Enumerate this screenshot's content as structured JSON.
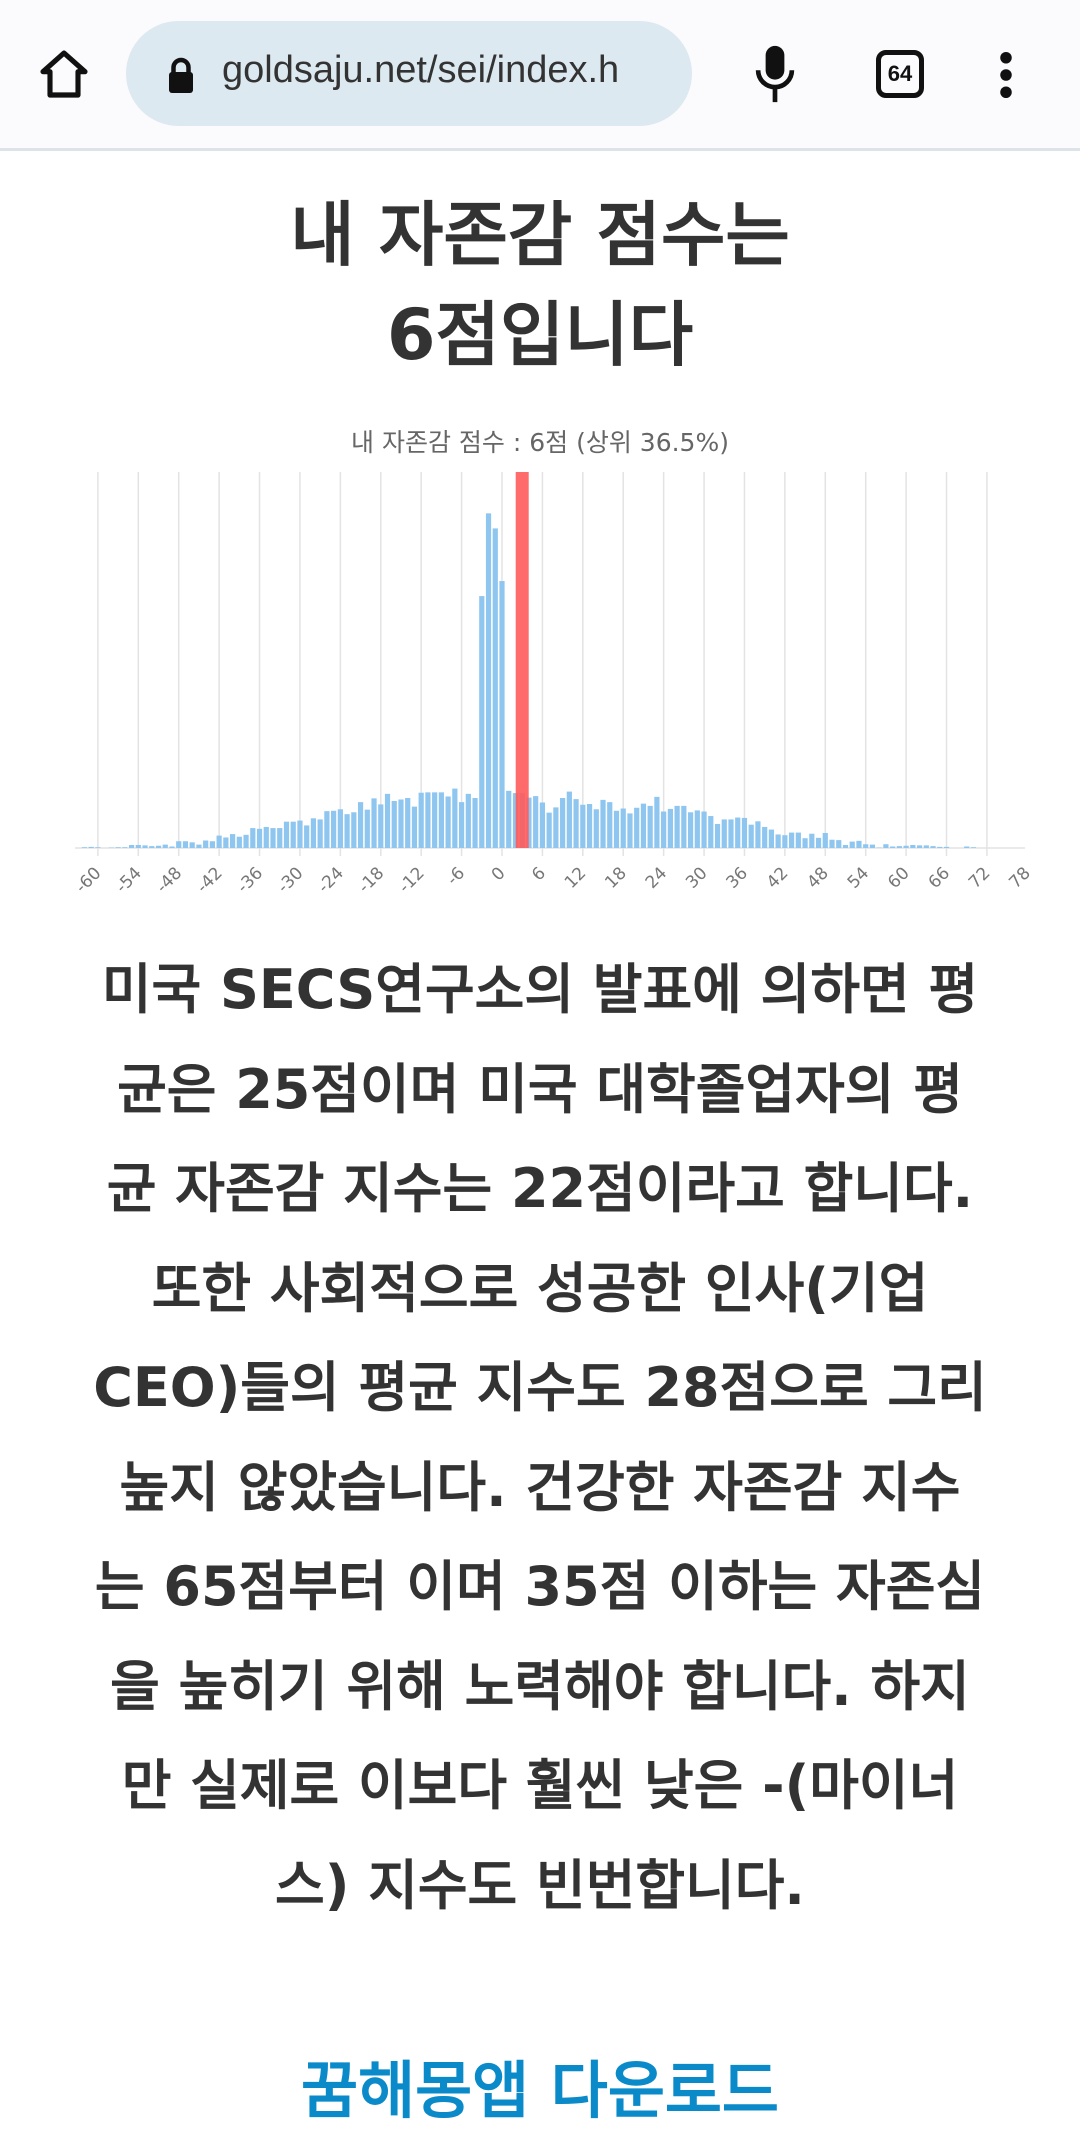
{
  "browser": {
    "url": "goldsaju.net/sei/index.h",
    "tab_count": "64",
    "icons": [
      "home-icon",
      "lock-icon",
      "microphone-icon",
      "tabs-icon",
      "more-vert-icon"
    ]
  },
  "page": {
    "title_lines": [
      "내 자존감 점수는",
      "6점입니다"
    ],
    "paragraph_lines": [
      "미국 SECS연구소의 발표에 의하면 평",
      "균은 25점이며 미국 대학졸업자의 평",
      "균 자존감 지수는 22점이라고 합니다.",
      "또한 사회적으로 성공한 인사(기업",
      "CEO)들의 평균 지수도 28점으로 그리",
      "높지 않았습니다. 건강한 자존감 지수",
      "는 65점부터 이며 35점 이하는 자존심",
      "을 높히기 위해 노력해야 합니다. 하지",
      "만 실제로 이보다 훨씬 낮은 -(마이너",
      "스) 지수도 빈번합니다."
    ],
    "download_link": "꿈해몽앱 다운로드",
    "link_color": "#0a8ac9"
  },
  "chart_data": {
    "type": "bar",
    "title": "내 자존감 점수 :  6점 (상위 36.5%)",
    "xlabel": "",
    "ylabel": "",
    "xlim": [
      -64,
      78
    ],
    "ylim": [
      0,
      100
    ],
    "grid": true,
    "x_ticks": [
      "-60",
      "-54",
      "-48",
      "-42",
      "-36",
      "-30",
      "-24",
      "-18",
      "-12",
      "-6",
      "0",
      "6",
      "12",
      "18",
      "24",
      "30",
      "36",
      "42",
      "48",
      "54",
      "60",
      "66",
      "72",
      "78"
    ],
    "bar_color": "#8ec6f0",
    "highlight_color": "#ff5a5a",
    "highlight_x": 3,
    "x": [
      -62,
      -61,
      -60,
      -59,
      -58,
      -57,
      -56,
      -55,
      -54,
      -53,
      -52,
      -51,
      -50,
      -49,
      -48,
      -47,
      -46,
      -45,
      -44,
      -43,
      -42,
      -41,
      -40,
      -39,
      -38,
      -37,
      -36,
      -35,
      -34,
      -33,
      -32,
      -31,
      -30,
      -29,
      -28,
      -27,
      -26,
      -25,
      -24,
      -23,
      -22,
      -21,
      -20,
      -19,
      -18,
      -17,
      -16,
      -15,
      -14,
      -13,
      -12,
      -11,
      -10,
      -9,
      -8,
      -7,
      -6,
      -5,
      -4,
      -3,
      -2,
      -1,
      0,
      1,
      2,
      3,
      4,
      5,
      6,
      7,
      8,
      9,
      10,
      11,
      12,
      13,
      14,
      15,
      16,
      17,
      18,
      19,
      20,
      21,
      22,
      23,
      24,
      25,
      26,
      27,
      28,
      29,
      30,
      31,
      32,
      33,
      34,
      35,
      36,
      37,
      38,
      39,
      40,
      41,
      42,
      43,
      44,
      45,
      46,
      47,
      48,
      49,
      50,
      51,
      52,
      53,
      54,
      55,
      56,
      57,
      58,
      59,
      60,
      61,
      62,
      63,
      64,
      65,
      66,
      67,
      68,
      69,
      70
    ],
    "values": [
      0.2,
      0.3,
      0.2,
      0,
      0.1,
      0.2,
      0.2,
      0.8,
      0.8,
      0.7,
      0.5,
      0.6,
      0.9,
      0.4,
      1.8,
      1.8,
      1.5,
      0.9,
      2.0,
      1.8,
      3.3,
      2.8,
      3.7,
      3.0,
      3.5,
      5.3,
      5.1,
      5.6,
      5.3,
      5.3,
      7.0,
      7.0,
      7.3,
      6.0,
      7.9,
      7.6,
      9.8,
      9.9,
      10.3,
      9.0,
      9.5,
      12.2,
      10.2,
      13.2,
      11.6,
      14.4,
      12.5,
      12.9,
      13.3,
      11.0,
      14.7,
      14.8,
      14.8,
      14.8,
      13.7,
      15.8,
      12.2,
      14.4,
      13.3,
      67,
      89,
      85,
      71,
      15.2,
      14.6,
      14.6,
      13.4,
      13.8,
      12.1,
      9.4,
      10.8,
      13.3,
      15.0,
      13.0,
      11.5,
      11.7,
      10.3,
      12.8,
      12.2,
      9.9,
      10.5,
      9.2,
      10.7,
      11.8,
      11.2,
      13.6,
      9.7,
      10.4,
      11.2,
      11.2,
      9.5,
      10.0,
      9.7,
      8.5,
      6.4,
      7.6,
      7.6,
      8.1,
      8.0,
      6.2,
      7.1,
      5.6,
      4.9,
      3.6,
      3.4,
      4.1,
      4.1,
      2.6,
      3.8,
      2.7,
      4.0,
      2.2,
      2.1,
      0.8,
      1.7,
      1.9,
      1.0,
      0.9,
      0.1,
      1.0,
      0.4,
      0.5,
      0.6,
      0.8,
      0.7,
      0.7,
      0.5,
      0.3,
      0.3,
      0,
      0,
      0.4,
      0.2
    ]
  }
}
